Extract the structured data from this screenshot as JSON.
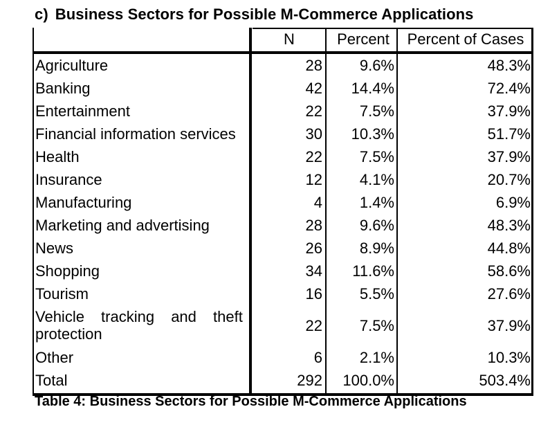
{
  "heading": {
    "tag": "c)",
    "title": "Business Sectors for Possible M-Commerce Applications"
  },
  "table": {
    "columns": [
      "N",
      "Percent",
      "Percent of Cases"
    ],
    "rows": [
      {
        "label": "Agriculture",
        "n": "28",
        "percent": "9.6%",
        "percent_of_cases": "48.3%"
      },
      {
        "label": "Banking",
        "n": "42",
        "percent": "14.4%",
        "percent_of_cases": "72.4%"
      },
      {
        "label": "Entertainment",
        "n": "22",
        "percent": "7.5%",
        "percent_of_cases": "37.9%"
      },
      {
        "label": "Financial information services",
        "n": "30",
        "percent": "10.3%",
        "percent_of_cases": "51.7%"
      },
      {
        "label": "Health",
        "n": "22",
        "percent": "7.5%",
        "percent_of_cases": "37.9%"
      },
      {
        "label": "Insurance",
        "n": "12",
        "percent": "4.1%",
        "percent_of_cases": "20.7%"
      },
      {
        "label": "Manufacturing",
        "n": "4",
        "percent": "1.4%",
        "percent_of_cases": "6.9%"
      },
      {
        "label": "Marketing and advertising",
        "n": "28",
        "percent": "9.6%",
        "percent_of_cases": "48.3%"
      },
      {
        "label": "News",
        "n": "26",
        "percent": "8.9%",
        "percent_of_cases": "44.8%"
      },
      {
        "label": "Shopping",
        "n": "34",
        "percent": "11.6%",
        "percent_of_cases": "58.6%"
      },
      {
        "label": "Tourism",
        "n": "16",
        "percent": "5.5%",
        "percent_of_cases": "27.6%"
      },
      {
        "label_line1": "Vehicle tracking and theft",
        "label_line2": "protection",
        "n": "22",
        "percent": "7.5%",
        "percent_of_cases": "37.9%"
      },
      {
        "label": "Other",
        "n": "6",
        "percent": "2.1%",
        "percent_of_cases": "10.3%"
      },
      {
        "label": "Total",
        "n": "292",
        "percent": "100.0%",
        "percent_of_cases": "503.4%"
      }
    ]
  },
  "caption": "Table 4: Business Sectors for Possible M-Commerce Applications"
}
